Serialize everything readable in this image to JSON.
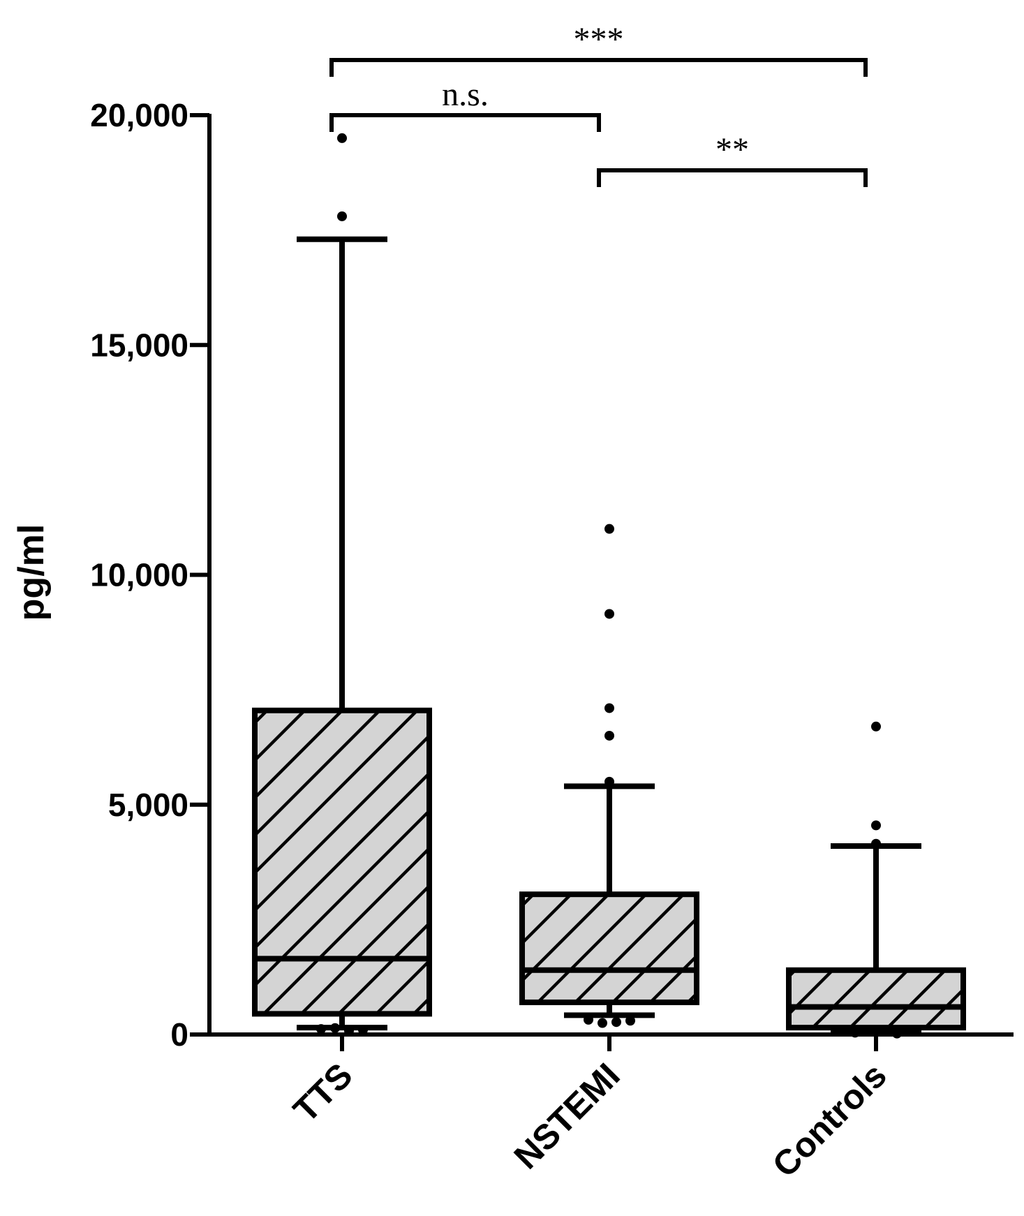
{
  "chart_data": {
    "type": "box",
    "title": "",
    "xlabel": "",
    "ylabel": "pg/ml",
    "ylim": [
      0,
      20000
    ],
    "yticks": [
      0,
      5000,
      10000,
      15000,
      20000
    ],
    "ytick_labels": [
      "0",
      "5,000",
      "10,000",
      "15,000",
      "20,000"
    ],
    "grid": false,
    "fill_color": "#d4d4d4",
    "stroke_color": "#000000",
    "categories": [
      "TTS",
      "NSTEMI",
      "Controls"
    ],
    "boxes": [
      {
        "category": "TTS",
        "whisker_low": 150,
        "q1": 450,
        "median": 1650,
        "q3": 7050,
        "whisker_high": 17300,
        "outliers_high": [
          17800,
          19500
        ],
        "outliers_low": [
          80,
          100,
          120,
          140
        ]
      },
      {
        "category": "NSTEMI",
        "whisker_low": 420,
        "q1": 700,
        "median": 1400,
        "q3": 3050,
        "whisker_high": 5400,
        "outliers_high": [
          5500,
          6500,
          7100,
          9150,
          11000
        ],
        "outliers_low": [
          250,
          270,
          300,
          320
        ]
      },
      {
        "category": "Controls",
        "whisker_low": 80,
        "q1": 150,
        "median": 600,
        "q3": 1400,
        "whisker_high": 4100,
        "outliers_high": [
          4150,
          4550,
          6700
        ],
        "outliers_low": [
          20,
          40,
          60
        ]
      }
    ],
    "annotations": [
      {
        "from": "TTS",
        "to": "NSTEMI",
        "label": "n.s.",
        "y": 20000
      },
      {
        "from": "NSTEMI",
        "to": "Controls",
        "label": "**",
        "y": 18800
      },
      {
        "from": "TTS",
        "to": "Controls",
        "label": "***",
        "y": 21200
      }
    ]
  }
}
